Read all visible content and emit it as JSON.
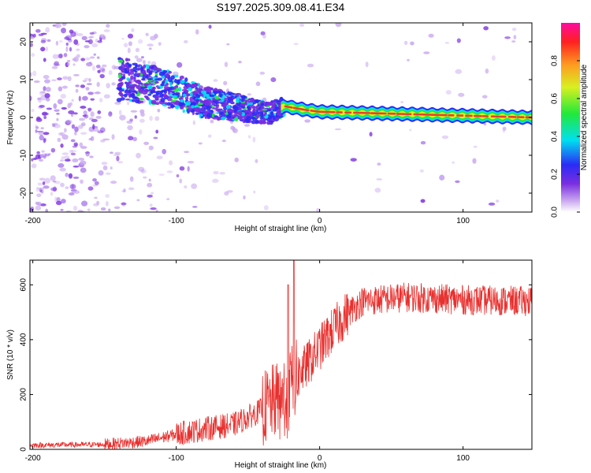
{
  "title": "S197.2025.309.08.41.E34",
  "colors": {
    "snr_line": "#e8302e",
    "ridge_core": "#e8402e",
    "colormap": [
      "#ffffff",
      "#c9a8f0",
      "#7a2ee0",
      "#2b2bf5",
      "#00e0f0",
      "#22e83a",
      "#d8f020",
      "#ff9a20",
      "#ff2020",
      "#ff0aa0"
    ]
  },
  "chart_data": [
    {
      "type": "heatmap",
      "name": "spectrogram",
      "xlabel": "Height of straight line (km)",
      "ylabel": "Frequency (Hz)",
      "xlim": [
        -202,
        148
      ],
      "ylim": [
        -25,
        25
      ],
      "xticks": [
        -200,
        -100,
        0,
        100
      ],
      "yticks": [
        -20,
        -10,
        0,
        10,
        20
      ],
      "xtick_labels": [
        "-200",
        "-100",
        "0",
        "100"
      ],
      "ytick_labels": [
        "-20",
        "-10",
        "0",
        "10",
        "20"
      ],
      "colorbar": {
        "label": "Normalized spectral amplitude",
        "range": [
          0,
          1
        ],
        "ticks": [
          0.0,
          0.2,
          0.4,
          0.6,
          0.8
        ],
        "tick_labels": [
          "0.0",
          "0.2",
          "0.4",
          "0.6",
          "0.8"
        ]
      },
      "ridge_frequency_hz": [
        {
          "x": -135,
          "f": 10
        },
        {
          "x": -110,
          "f": 8
        },
        {
          "x": -80,
          "f": 4
        },
        {
          "x": -55,
          "f": 2.5
        },
        {
          "x": -35,
          "f": 1
        },
        {
          "x": -25,
          "f": 3
        },
        {
          "x": -10,
          "f": 2
        },
        {
          "x": 0,
          "f": 1.5
        },
        {
          "x": 50,
          "f": 1
        },
        {
          "x": 148,
          "f": 0
        }
      ]
    },
    {
      "type": "line",
      "name": "snr",
      "xlabel": "Height of straight line (km)",
      "ylabel": "SNR (10 * v/v)",
      "xlim": [
        -202,
        148
      ],
      "ylim": [
        0,
        690
      ],
      "xticks": [
        -200,
        -100,
        0,
        100
      ],
      "yticks": [
        0,
        200,
        400,
        600
      ],
      "xtick_labels": [
        "-200",
        "-100",
        "0",
        "100"
      ],
      "ytick_labels": [
        "0",
        "200",
        "400",
        "600"
      ],
      "series": [
        {
          "name": "SNR",
          "envelope_mean": [
            {
              "x": -202,
              "y": 15
            },
            {
              "x": -150,
              "y": 18
            },
            {
              "x": -120,
              "y": 30
            },
            {
              "x": -100,
              "y": 55
            },
            {
              "x": -80,
              "y": 75
            },
            {
              "x": -60,
              "y": 90
            },
            {
              "x": -45,
              "y": 130
            },
            {
              "x": -30,
              "y": 180
            },
            {
              "x": -20,
              "y": 240
            },
            {
              "x": -10,
              "y": 300
            },
            {
              "x": 0,
              "y": 370
            },
            {
              "x": 10,
              "y": 440
            },
            {
              "x": 20,
              "y": 500
            },
            {
              "x": 30,
              "y": 540
            },
            {
              "x": 60,
              "y": 555
            },
            {
              "x": 100,
              "y": 545
            },
            {
              "x": 148,
              "y": 540
            }
          ],
          "peaks": [
            {
              "x": -18,
              "y": 690
            },
            {
              "x": -22,
              "y": 600
            }
          ]
        }
      ]
    }
  ]
}
